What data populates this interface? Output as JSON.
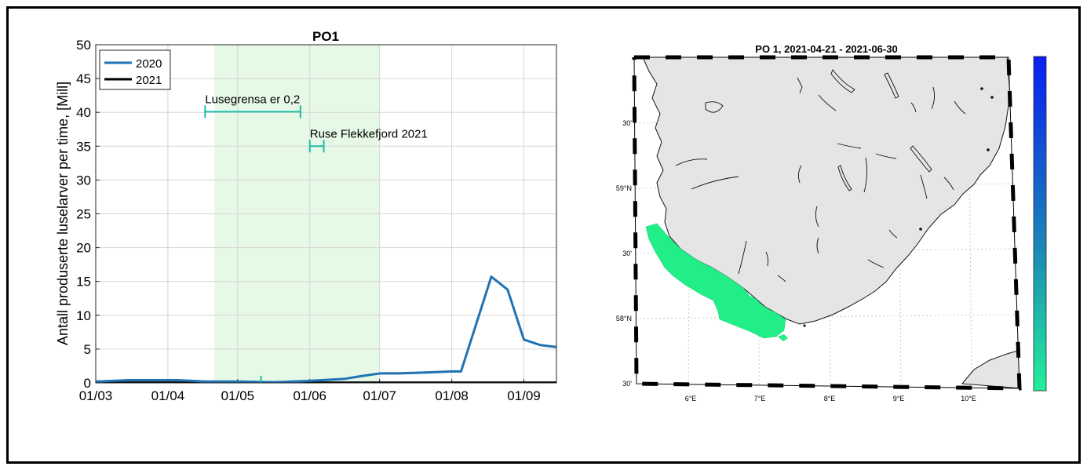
{
  "chart_data": [
    {
      "type": "line",
      "title": "PO1",
      "xlabel": "",
      "ylabel": "Antall produserte luselarver per time, [Mill]",
      "ylim": [
        0,
        50
      ],
      "yticks": [
        0,
        5,
        10,
        15,
        20,
        25,
        30,
        35,
        40,
        45,
        50
      ],
      "x_ticks": [
        "01/03",
        "01/04",
        "01/05",
        "01/06",
        "01/07",
        "01/08",
        "01/09"
      ],
      "x_tick_days": [
        0,
        31,
        61,
        92,
        122,
        153,
        184
      ],
      "xlim_days": [
        0,
        198
      ],
      "grid": true,
      "legend_position": "top-left",
      "shaded_period_days": [
        51,
        122
      ],
      "shaded_color": "#e6f8e6",
      "series": [
        {
          "name": "2020",
          "color": "#1f72b4",
          "x_days": [
            0,
            14,
            35,
            48,
            61,
            77,
            92,
            107,
            114,
            122,
            130,
            138,
            146,
            153,
            157,
            170,
            177,
            184,
            191,
            198
          ],
          "values": [
            0.2,
            0.4,
            0.4,
            0.2,
            0.2,
            0.1,
            0.3,
            0.6,
            1.0,
            1.4,
            1.4,
            1.5,
            1.6,
            1.7,
            1.7,
            15.7,
            13.8,
            6.4,
            5.6,
            5.3
          ]
        },
        {
          "name": "2021",
          "color": "#000000",
          "x_days": [
            0,
            30,
            60,
            90,
            122,
            150,
            180,
            198
          ],
          "values": [
            0.05,
            0.05,
            0.05,
            0.05,
            0.05,
            0.05,
            0.05,
            0.05
          ]
        }
      ],
      "annotations": [
        {
          "label": "Lusegrensa er 0,2",
          "x_days": [
            47,
            88
          ],
          "y": 40.1,
          "color": "#1ebca8"
        },
        {
          "label": "Ruse Flekkefjord 2021",
          "x_days": [
            92,
            98
          ],
          "y": 35,
          "color": "#1ebca8"
        }
      ],
      "x_marker_day": 71
    },
    {
      "type": "map",
      "title": "PO 1, 2021-04-21 - 2021-06-30",
      "lat_labels": [
        "30'",
        "59°N",
        "30'",
        "58°N",
        "30'"
      ],
      "lon_labels": [
        "6°E",
        "7°E",
        "8°E",
        "9°E",
        "10°E"
      ],
      "land_color": "#e5e5e5",
      "highlight_color": "#22ee88",
      "colorbar": {
        "top_color": "#0a1ef2",
        "bottom_color": "#22f098"
      }
    }
  ]
}
